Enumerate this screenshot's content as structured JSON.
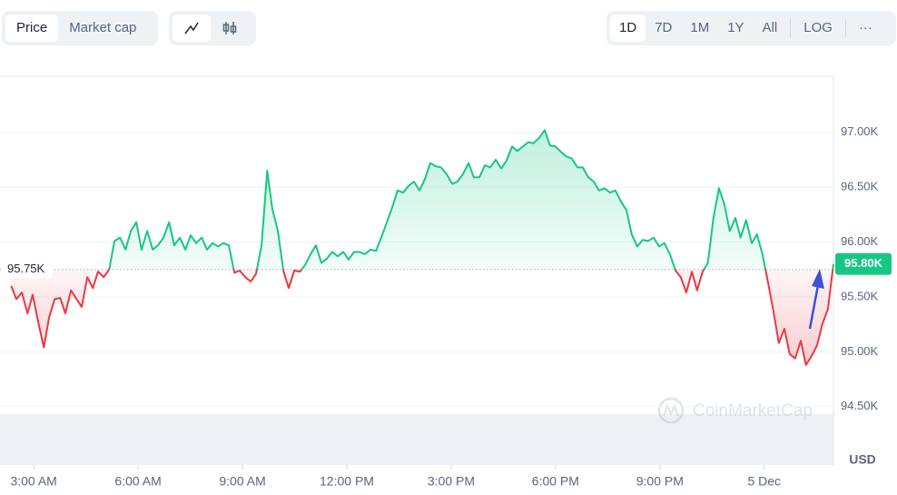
{
  "ui": {
    "metric_buttons": [
      "Price",
      "Market cap"
    ],
    "range_buttons": [
      "1D",
      "7D",
      "1M",
      "1Y",
      "All"
    ],
    "scale_button": "LOG",
    "more_button": "···",
    "y_unit": "USD",
    "watermark": "CoinMarketCap"
  },
  "chart_data": {
    "type": "line",
    "x": [
      2.35,
      2.5,
      2.66,
      2.82,
      2.97,
      3.13,
      3.29,
      3.44,
      3.6,
      3.76,
      3.91,
      4.07,
      4.23,
      4.38,
      4.54,
      4.7,
      4.85,
      5.01,
      5.17,
      5.32,
      5.48,
      5.64,
      5.79,
      5.95,
      6.1,
      6.26,
      6.42,
      6.57,
      6.73,
      6.89,
      7.04,
      7.2,
      7.36,
      7.51,
      7.67,
      7.83,
      7.98,
      8.14,
      8.3,
      8.45,
      8.61,
      8.77,
      8.92,
      9.08,
      9.24,
      9.39,
      9.55,
      9.71,
      9.86,
      10.02,
      10.18,
      10.33,
      10.49,
      10.65,
      10.8,
      10.96,
      11.11,
      11.27,
      11.43,
      11.58,
      11.74,
      11.9,
      12.05,
      12.21,
      12.37,
      12.52,
      12.68,
      12.84,
      12.99,
      13.15,
      13.31,
      13.46,
      13.62,
      13.77,
      13.93,
      14.09,
      14.24,
      14.4,
      14.56,
      14.71,
      14.87,
      15.03,
      15.18,
      15.34,
      15.5,
      15.65,
      15.81,
      15.97,
      16.12,
      16.28,
      16.44,
      16.59,
      16.75,
      16.9,
      17.06,
      17.22,
      17.37,
      17.53,
      17.69,
      17.84,
      18.0,
      18.16,
      18.31,
      18.47,
      18.63,
      18.78,
      18.94,
      19.1,
      19.25,
      19.41,
      19.57,
      19.72,
      19.88,
      20.04,
      20.19,
      20.35,
      20.51,
      20.66,
      20.82,
      20.98,
      21.13,
      21.29,
      21.45,
      21.6,
      21.76,
      21.92,
      22.07,
      22.23,
      22.38,
      22.54,
      22.7,
      22.85,
      23.01,
      23.17,
      23.32,
      23.48,
      23.64,
      23.79,
      23.95,
      24.11,
      24.26,
      24.42,
      24.58,
      24.73,
      24.89,
      25.05,
      25.2,
      25.36,
      25.52,
      25.67,
      25.83,
      25.99
    ],
    "values": [
      95600,
      95480,
      95540,
      95350,
      95520,
      95270,
      95040,
      95310,
      95480,
      95490,
      95350,
      95560,
      95480,
      95410,
      95680,
      95580,
      95730,
      95680,
      95750,
      96010,
      96040,
      95930,
      96100,
      96180,
      95930,
      96100,
      95930,
      95970,
      96040,
      96180,
      95970,
      96040,
      95930,
      96060,
      95990,
      96040,
      95930,
      95990,
      95960,
      95990,
      95970,
      95720,
      95740,
      95680,
      95640,
      95710,
      95970,
      96650,
      96300,
      96100,
      95730,
      95580,
      95740,
      95730,
      95790,
      95890,
      95970,
      95810,
      95850,
      95910,
      95870,
      95910,
      95840,
      95910,
      95910,
      95890,
      95930,
      95920,
      96040,
      96180,
      96320,
      96470,
      96450,
      96510,
      96550,
      96470,
      96570,
      96720,
      96690,
      96680,
      96620,
      96530,
      96550,
      96620,
      96720,
      96590,
      96590,
      96700,
      96680,
      96750,
      96670,
      96740,
      96870,
      96830,
      96870,
      96910,
      96900,
      96950,
      97020,
      96880,
      96870,
      96820,
      96780,
      96760,
      96680,
      96680,
      96590,
      96550,
      96470,
      96490,
      96450,
      96470,
      96370,
      96290,
      96070,
      95960,
      96020,
      96010,
      96040,
      95960,
      95990,
      95890,
      95740,
      95680,
      95540,
      95730,
      95560,
      95730,
      95810,
      96220,
      96490,
      96350,
      96100,
      96220,
      96040,
      96200,
      95990,
      96070,
      95890,
      95630,
      95380,
      95080,
      95210,
      94980,
      94940,
      95100,
      94880,
      94960,
      95060,
      95250,
      95390,
      95800
    ],
    "xlim": [
      2.03,
      25.99
    ],
    "xticks": [
      {
        "value": 3,
        "label": "3:00 AM"
      },
      {
        "value": 6,
        "label": "6:00 AM"
      },
      {
        "value": 9,
        "label": "9:00 AM"
      },
      {
        "value": 12,
        "label": "12:00 PM"
      },
      {
        "value": 15,
        "label": "3:00 PM"
      },
      {
        "value": 18,
        "label": "6:00 PM"
      },
      {
        "value": 21,
        "label": "9:00 PM"
      },
      {
        "value": 24,
        "label": "5 Dec"
      }
    ],
    "ylim": [
      94440,
      97510
    ],
    "yticks": [
      {
        "value": 94500,
        "label": "94.50K"
      },
      {
        "value": 95000,
        "label": "95.00K"
      },
      {
        "value": 95500,
        "label": "95.50K"
      },
      {
        "value": 96000,
        "label": "96.00K"
      },
      {
        "value": 96500,
        "label": "96.50K"
      },
      {
        "value": 97000,
        "label": "97.00K"
      }
    ],
    "baseline": {
      "value": 95750,
      "label": "95.75K"
    },
    "last_value_label": "95.80K",
    "up_color": "#16c784",
    "down_color": "#ea3943",
    "grid": true
  }
}
